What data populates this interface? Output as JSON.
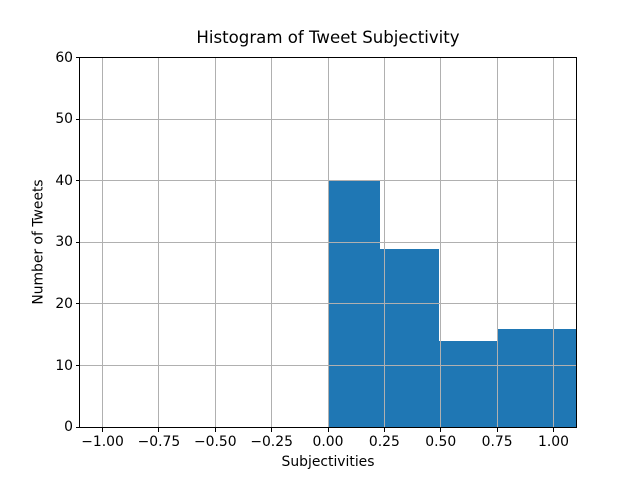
{
  "chart_data": {
    "type": "bar",
    "subtype": "histogram",
    "title": "Histogram of Tweet Subjectivity",
    "xlabel": "Subjectivities",
    "ylabel": "Number of Tweets",
    "xlim": [
      -1.1,
      1.1
    ],
    "ylim": [
      0,
      60
    ],
    "xticks": [
      -1.0,
      -0.75,
      -0.5,
      -0.25,
      0.0,
      0.25,
      0.5,
      0.75,
      1.0
    ],
    "xtick_labels": [
      "−1.00",
      "−0.75",
      "−0.50",
      "−0.25",
      "0.00",
      "0.25",
      "0.50",
      "0.75",
      "1.00"
    ],
    "yticks": [
      0,
      10,
      20,
      30,
      40,
      50,
      60
    ],
    "ytick_labels": [
      "0",
      "10",
      "20",
      "30",
      "40",
      "50",
      "60"
    ],
    "grid": true,
    "grid_over_bars": true,
    "legend": null,
    "bar_color": "#1f77b4",
    "grid_color": "#b0b0b0",
    "spine_color": "#000000",
    "bins": [
      {
        "x0": 0.0,
        "x1": 0.231,
        "count": 40
      },
      {
        "x0": 0.231,
        "x1": 0.492,
        "count": 29
      },
      {
        "x0": 0.492,
        "x1": 0.752,
        "count": 14
      },
      {
        "x0": 0.752,
        "x1": 1.1,
        "count": 16
      }
    ]
  }
}
